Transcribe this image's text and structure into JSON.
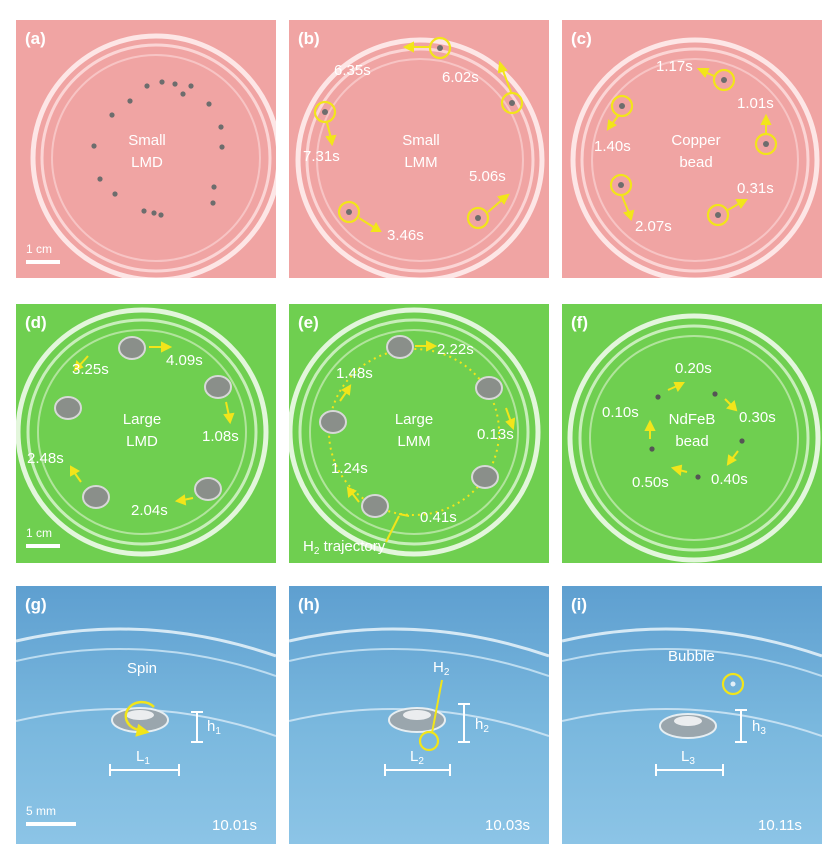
{
  "colors": {
    "pink": "#f0a4a3",
    "green": "#6fcf50",
    "blue": "#7ab8de",
    "yellow": "#f2e51a"
  },
  "panels": {
    "a": {
      "label": "(a)",
      "line1": "Small",
      "line2": "LMD",
      "scale": "1 cm"
    },
    "b": {
      "label": "(b)",
      "line1": "Small",
      "line2": "LMM",
      "times": [
        "6.35s",
        "6.02s",
        "7.31s",
        "5.06s",
        "3.46s"
      ]
    },
    "c": {
      "label": "(c)",
      "line1": "Copper",
      "line2": "bead",
      "times": [
        "1.17s",
        "1.01s",
        "1.40s",
        "0.31s",
        "2.07s"
      ]
    },
    "d": {
      "label": "(d)",
      "line1": "Large",
      "line2": "LMD",
      "scale": "1 cm",
      "times": [
        "3.25s",
        "4.09s",
        "1.08s",
        "2.48s",
        "2.04s"
      ]
    },
    "e": {
      "label": "(e)",
      "line1": "Large",
      "line2": "LMM",
      "times": [
        "2.22s",
        "1.48s",
        "0.13s",
        "1.24s",
        "0.41s"
      ],
      "traj_h": "H",
      "traj_sub": "2",
      "traj_rest": " trajectory"
    },
    "f": {
      "label": "(f)",
      "line1": "NdFeB",
      "line2": "bead",
      "times": [
        "0.20s",
        "0.10s",
        "0.30s",
        "0.50s",
        "0.40s"
      ]
    },
    "g": {
      "label": "(g)",
      "note": "Spin",
      "h": "h",
      "h_sub": "1",
      "l": "L",
      "l_sub": "1",
      "scale": "5 mm",
      "time": "10.01s"
    },
    "h": {
      "label": "(h)",
      "note_main": "H",
      "note_sub": "2",
      "h": "h",
      "h_sub": "2",
      "l": "L",
      "l_sub": "2",
      "time": "10.03s"
    },
    "i": {
      "label": "(i)",
      "note": "Bubble",
      "h": "h",
      "h_sub": "3",
      "l": "L",
      "l_sub": "3",
      "time": "10.11s"
    }
  }
}
